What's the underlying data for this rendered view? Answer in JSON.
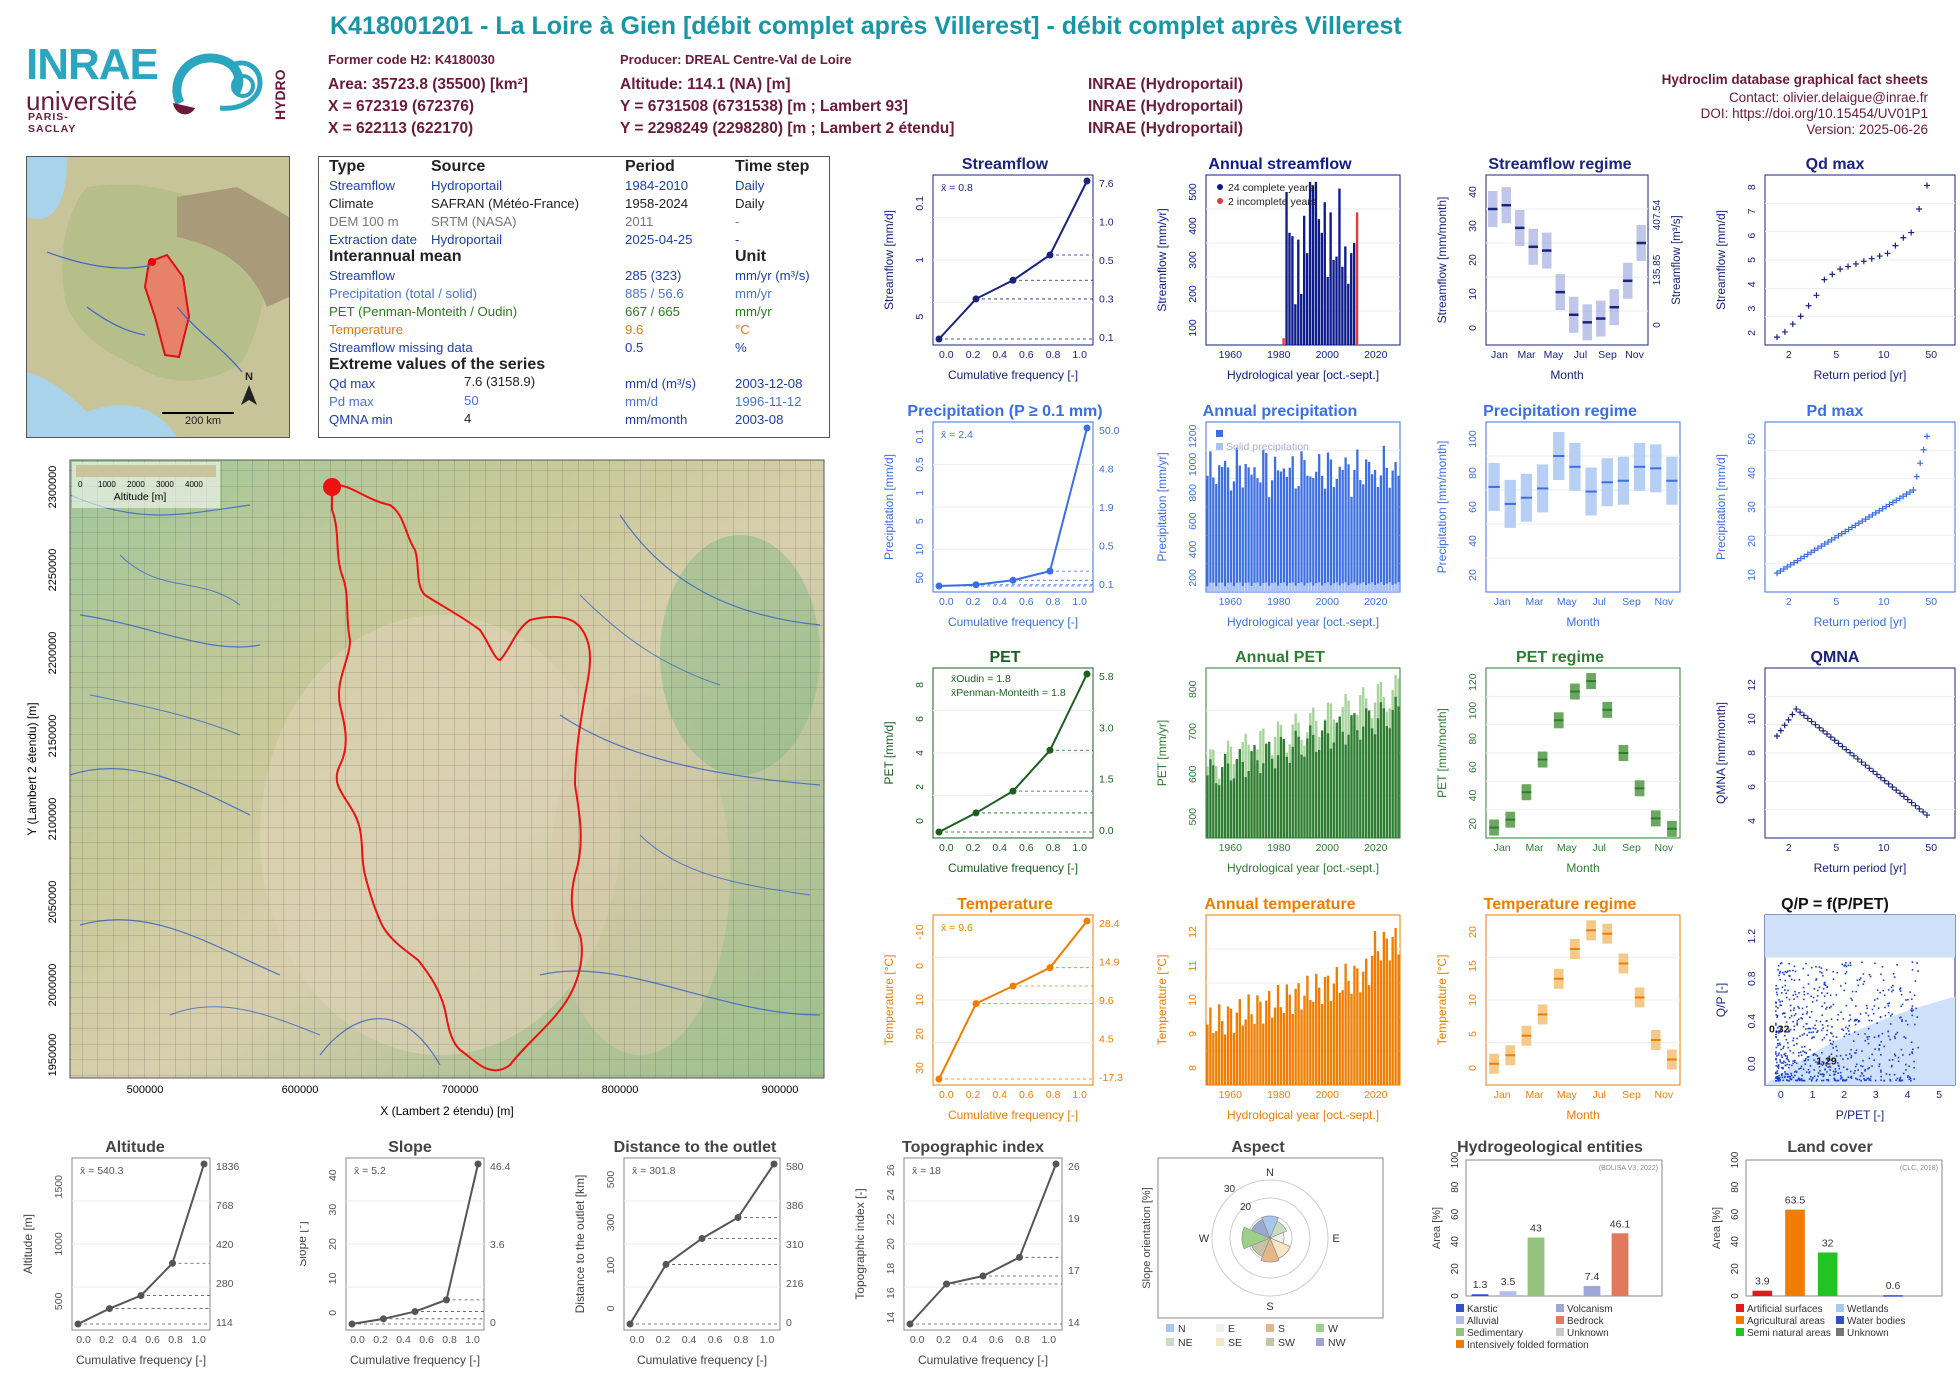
{
  "header": {
    "title": "K418001201 - La Loire à Gien [débit complet après Villerest] - débit complet après Villerest",
    "former_code": "Former code H2: K4180030",
    "producer": "Producer: DREAL Centre-Val de Loire",
    "area": "Area: 35723.8 (35500) [km²]",
    "x": "X = 672319 (672376)",
    "x2": "X = 622113 (622170)",
    "altitude": "Altitude: 114.1 (NA) [m]",
    "y": "Y = 6731508 (6731538) [m ; Lambert 93]",
    "y2": "Y = 2298249 (2298280) [m ; Lambert 2 étendu]",
    "src1": "INRAE (Hydroportail)",
    "src2": "INRAE (Hydroportail)",
    "src3": "INRAE (Hydroportail)",
    "db": "Hydroclim database graphical fact sheets",
    "contact": "Contact: olivier.delaigue@inrae.fr",
    "doi": "DOI: https://doi.org/10.15454/UV01P1",
    "version": "Version: 2025-06-26"
  },
  "logos": {
    "inrae": "INRAE",
    "universite": "université",
    "paris_saclay": "PARIS-SACLAY",
    "hydro": "HYDRO"
  },
  "info": {
    "h_type": "Type",
    "h_source": "Source",
    "h_period": "Period",
    "h_step": "Time step",
    "rows": [
      [
        "Streamflow",
        "Hydroportail",
        "1984-2010",
        "Daily"
      ],
      [
        "Climate",
        "SAFRAN (Météo-France)",
        "1958-2024",
        "Daily"
      ],
      [
        "DEM 100 m",
        "SRTM (NASA)",
        "2011",
        "-"
      ],
      [
        "Extraction date",
        "Hydroportail",
        "2025-04-25",
        "-"
      ]
    ],
    "h_mean": "Interannual mean",
    "h_unit": "Unit",
    "means": [
      [
        "Streamflow",
        "285 (323)",
        "mm/yr (m³/s)"
      ],
      [
        "Precipitation (total / solid)",
        "885 / 56.6",
        "mm/yr"
      ],
      [
        "PET (Penman-Monteith / Oudin)",
        "667 / 665",
        "mm/yr"
      ],
      [
        "Temperature",
        "9.6",
        "°C"
      ],
      [
        "Streamflow missing data",
        "0.5",
        "%"
      ]
    ],
    "h_extreme": "Extreme values of the series",
    "extremes": [
      [
        "Qd max",
        "7.6 (3158.9)",
        "mm/d (m³/s)",
        "2003-12-08"
      ],
      [
        "Pd max",
        "50",
        "mm/d",
        "1996-11-12"
      ],
      [
        "QMNA min",
        "4",
        "mm/month",
        "2003-08"
      ]
    ]
  },
  "inset_map": {
    "scale": "200 km",
    "north": "N"
  },
  "main_map": {
    "xlabel": "X (Lambert 2 étendu) [m]",
    "ylabel": "Y (Lambert 2 étendu) [m]",
    "xticks": [
      "500000",
      "600000",
      "700000",
      "800000",
      "900000"
    ],
    "yticks": [
      "2300000",
      "2250000",
      "2200000",
      "2150000",
      "2100000",
      "2050000",
      "2000000",
      "1950000"
    ],
    "legend_title": "Altitude [m]",
    "legend_ticks": [
      "0",
      "1000",
      "2000",
      "3000",
      "4000"
    ]
  },
  "chart_data": [
    {
      "id": "streamflow_fdc",
      "type": "line",
      "title": "Streamflow",
      "xlabel": "Cumulative frequency [-]",
      "ylabel": "Streamflow [mm/d]",
      "log_y": true,
      "mean_label": "x̄ = 0.8",
      "x": [
        0,
        0.25,
        0.5,
        0.75,
        1
      ],
      "y": [
        0.1,
        0.3,
        0.5,
        1.0,
        7.6
      ],
      "right_ticks": [
        "7.6",
        "1.0",
        "0.5",
        "0.3",
        "0.1"
      ],
      "y_ticks": [
        "5",
        "1",
        "0.1"
      ],
      "x_ticks": [
        "0.0",
        "0.2",
        "0.4",
        "0.6",
        "0.8",
        "1.0"
      ],
      "color": "#1a237e"
    },
    {
      "id": "annual_streamflow",
      "type": "bar",
      "title": "Annual streamflow",
      "xlabel": "Hydrological year [oct.-sept.]",
      "ylabel": "Streamflow [mm/yr]",
      "legend": [
        "24 complete years",
        "2 incomplete years"
      ],
      "years_start": 1984,
      "values": [
        20,
        450,
        330,
        320,
        120,
        310,
        150,
        380,
        270,
        480,
        470,
        480,
        370,
        330,
        420,
        200,
        390,
        250,
        260,
        460,
        230,
        290,
        180,
        270,
        300,
        390
      ],
      "ylim": [
        0,
        500
      ],
      "y_ticks": [
        "100",
        "200",
        "300",
        "400",
        "500"
      ],
      "x_ticks": [
        "1960",
        "1980",
        "2000",
        "2020"
      ],
      "color": "#0d1b8c",
      "incomplete_color": "#e53935"
    },
    {
      "id": "streamflow_regime",
      "type": "bar",
      "title": "Streamflow regime",
      "xlabel": "Month",
      "ylabel": "Streamflow [mm/month]",
      "months": [
        "Jan",
        "Mar",
        "May",
        "Jul",
        "Sep",
        "Nov"
      ],
      "values": [
        36,
        37,
        31,
        26,
        25,
        14,
        8,
        6,
        7,
        10,
        17,
        27
      ],
      "ylim": [
        0,
        45
      ],
      "y_ticks": [
        "0",
        "10",
        "20",
        "30",
        "40"
      ],
      "right_label": "Streamflow [m³/s]",
      "right_ticks": [
        "407.54",
        "135.85",
        "0"
      ],
      "color": "#1a237e"
    },
    {
      "id": "qd_max",
      "type": "scatter",
      "title": "Qd max",
      "xlabel": "Return period [yr]",
      "ylabel": "Streamflow [mm/d]",
      "x_ticks": [
        "2",
        "5",
        "10",
        "50"
      ],
      "y_ticks": [
        "2",
        "3",
        "4",
        "5",
        "6",
        "7",
        "8"
      ],
      "ylim": [
        1.5,
        8
      ],
      "y": [
        1.8,
        2.0,
        2.3,
        2.6,
        3.0,
        3.4,
        4.0,
        4.2,
        4.4,
        4.5,
        4.6,
        4.7,
        4.8,
        4.9,
        5.0,
        5.3,
        5.6,
        5.8,
        6.7,
        7.6
      ],
      "color": "#1a237e"
    },
    {
      "id": "precip_fdc",
      "type": "line",
      "title": "Precipitation (P ≥ 0.1 mm)",
      "xlabel": "Cumulative frequency [-]",
      "ylabel": "Precipitation [mm/d]",
      "mean_label": "x̄ = 2.4",
      "x": [
        0,
        0.25,
        0.5,
        0.75,
        1
      ],
      "y": [
        0.1,
        0.5,
        1.9,
        4.8,
        50.0
      ],
      "right_ticks": [
        "50.0",
        "4.8",
        "1.9",
        "0.5",
        "0.1"
      ],
      "y_ticks": [
        "50",
        "10",
        "5",
        "1",
        "0.5",
        "0.1"
      ],
      "x_ticks": [
        "0.0",
        "0.2",
        "0.4",
        "0.6",
        "0.8",
        "1.0"
      ],
      "color": "#3c6fe0"
    },
    {
      "id": "annual_precip",
      "type": "bar",
      "title": "Annual precipitation",
      "xlabel": "Hydrological year [oct.-sept.]",
      "ylabel": "Precipitation [mm/yr]",
      "legend": [
        "Total precipitation",
        "Solid precipitation"
      ],
      "years_start": 1958,
      "ylim": [
        0,
        1200
      ],
      "y_ticks": [
        "200",
        "400",
        "600",
        "800",
        "1000",
        "1200"
      ],
      "x_ticks": [
        "1960",
        "1980",
        "2000",
        "2020"
      ],
      "color": "#3c6fe0",
      "solid_color": "#a9c1f5"
    },
    {
      "id": "precip_regime",
      "type": "bar",
      "title": "Precipitation regime",
      "xlabel": "Month",
      "ylabel": "Precipitation [mm/month]",
      "months": [
        "Jan",
        "Mar",
        "May",
        "Jul",
        "Sep",
        "Nov"
      ],
      "values": [
        68,
        57,
        61,
        67,
        88,
        81,
        65,
        71,
        72,
        81,
        80,
        72
      ],
      "ylim": [
        0,
        110
      ],
      "y_ticks": [
        "20",
        "40",
        "60",
        "80",
        "100"
      ],
      "color": "#3c6fe0"
    },
    {
      "id": "pd_max",
      "type": "scatter",
      "title": "Pd max",
      "xlabel": "Return period [yr]",
      "ylabel": "Precipitation [mm/d]",
      "x_ticks": [
        "2",
        "5",
        "10",
        "50"
      ],
      "y_ticks": [
        "10",
        "20",
        "30",
        "40",
        "50"
      ],
      "ylim": [
        10,
        55
      ],
      "color": "#3c6fe0"
    },
    {
      "id": "pet_fdc",
      "type": "line",
      "title": "PET",
      "xlabel": "Cumulative frequency [-]",
      "ylabel": "PET [mm/d]",
      "legend": [
        "x̄Oudin = 1.8",
        "x̄Penman-Monteith = 1.8"
      ],
      "x": [
        0,
        0.25,
        0.5,
        0.75,
        1
      ],
      "y": [
        0.0,
        0.7,
        1.5,
        3.0,
        5.8
      ],
      "right_ticks": [
        "5.8",
        "3.0",
        "1.5",
        "0.0"
      ],
      "y_ticks": [
        "0",
        "2",
        "4",
        "6",
        "8"
      ],
      "x_ticks": [
        "0.0",
        "0.2",
        "0.4",
        "0.6",
        "0.8",
        "1.0"
      ],
      "color": "#1b5e20"
    },
    {
      "id": "annual_pet",
      "type": "bar",
      "title": "Annual PET",
      "xlabel": "Hydrological year [oct.-sept.]",
      "ylabel": "PET [mm/yr]",
      "years_start": 1958,
      "ylim": [
        500,
        880
      ],
      "y_ticks": [
        "500",
        "600",
        "700",
        "800"
      ],
      "x_ticks": [
        "1960",
        "1980",
        "2000",
        "2020"
      ],
      "color": "#2e7d32"
    },
    {
      "id": "pet_regime",
      "type": "bar",
      "title": "PET regime",
      "xlabel": "Month",
      "ylabel": "PET [mm/month]",
      "months": [
        "Jan",
        "Mar",
        "May",
        "Jul",
        "Sep",
        "Nov"
      ],
      "values": [
        8,
        14,
        35,
        60,
        90,
        112,
        120,
        98,
        65,
        38,
        15,
        7
      ],
      "ylim": [
        0,
        130
      ],
      "y_ticks": [
        "20",
        "40",
        "60",
        "80",
        "100",
        "120"
      ],
      "color": "#2e7d32"
    },
    {
      "id": "qmna",
      "type": "scatter",
      "title": "QMNA",
      "xlabel": "Return period [yr]",
      "ylabel": "QMNA [mm/month]",
      "x_ticks": [
        "2",
        "5",
        "10",
        "50"
      ],
      "y_ticks": [
        "4",
        "6",
        "8",
        "10",
        "12"
      ],
      "ylim": [
        3,
        15
      ],
      "color": "#1a237e"
    },
    {
      "id": "temp_fdc",
      "type": "line",
      "title": "Temperature",
      "xlabel": "Cumulative frequency [-]",
      "ylabel": "Temperature [°C]",
      "mean_label": "x̄ = 9.6",
      "x": [
        0,
        0.25,
        0.5,
        0.75,
        1
      ],
      "y": [
        -17.3,
        4.5,
        9.6,
        14.9,
        28.4
      ],
      "right_ticks": [
        "28.4",
        "14.9",
        "9.6",
        "4.5",
        "-17.3"
      ],
      "y_ticks": [
        "30",
        "20",
        "10",
        "0",
        "-10"
      ],
      "x_ticks": [
        "0.0",
        "0.2",
        "0.4",
        "0.6",
        "0.8",
        "1.0"
      ],
      "color": "#ef7d00"
    },
    {
      "id": "annual_temp",
      "type": "bar",
      "title": "Annual temperature",
      "xlabel": "Hydrological year [oct.-sept.]",
      "ylabel": "Temperature [°C]",
      "years_start": 1958,
      "ylim": [
        7.5,
        12
      ],
      "y_ticks": [
        "8",
        "9",
        "10",
        "11",
        "12"
      ],
      "x_ticks": [
        "1960",
        "1980",
        "2000",
        "2020"
      ],
      "color": "#ef7d00"
    },
    {
      "id": "temp_regime",
      "type": "bar",
      "title": "Temperature regime",
      "xlabel": "Month",
      "ylabel": "Temperature [°C]",
      "months": [
        "Jan",
        "Mar",
        "May",
        "Jul",
        "Sep",
        "Nov"
      ],
      "values": [
        2.5,
        3.5,
        5.8,
        8.3,
        12.5,
        16.0,
        18.2,
        17.8,
        14.3,
        10.3,
        5.3,
        3.0
      ],
      "ylim": [
        0,
        20
      ],
      "y_ticks": [
        "0",
        "5",
        "10",
        "15",
        "20"
      ],
      "color": "#ef7d00"
    },
    {
      "id": "qp_ppet",
      "type": "scatter",
      "title": "Q/P = f(P/PET)",
      "xlabel": "P/PET [-]",
      "ylabel": "Q/P [-]",
      "x_ticks": [
        "0",
        "1",
        "2",
        "3",
        "4",
        "5"
      ],
      "y_ticks": [
        "0.0",
        "0.4",
        "0.8",
        "1.2"
      ],
      "point_labels": [
        "0.32",
        "1.29"
      ],
      "color": "#1a3fd0"
    },
    {
      "id": "altitude_cdf",
      "type": "line",
      "title": "Altitude",
      "xlabel": "Cumulative frequency [-]",
      "ylabel": "Altitude [m]",
      "mean_label": "x̄ = 540.3",
      "x": [
        0,
        0.25,
        0.5,
        0.75,
        1
      ],
      "y": [
        114,
        280,
        420,
        768,
        1836
      ],
      "right_ticks": [
        "1836",
        "768",
        "420",
        "280",
        "114"
      ],
      "y_ticks": [
        "500",
        "1000",
        "1500"
      ],
      "x_ticks": [
        "0.0",
        "0.2",
        "0.4",
        "0.6",
        "0.8",
        "1.0"
      ],
      "color": "#555555"
    },
    {
      "id": "slope_cdf",
      "type": "line",
      "title": "Slope",
      "xlabel": "Cumulative frequency [-]",
      "ylabel": "Slope [°]",
      "mean_label": "x̄ = 5.2",
      "x": [
        0,
        0.25,
        0.5,
        0.75,
        1
      ],
      "y": [
        0,
        1.5,
        3.6,
        7,
        46.4
      ],
      "right_ticks": [
        "46.4",
        "3.6",
        "0"
      ],
      "y_ticks": [
        "0",
        "10",
        "20",
        "30",
        "40"
      ],
      "x_ticks": [
        "0.0",
        "0.2",
        "0.4",
        "0.6",
        "0.8",
        "1.0"
      ],
      "color": "#555555"
    },
    {
      "id": "distance_cdf",
      "type": "line",
      "title": "Distance to the outlet",
      "xlabel": "Cumulative frequency [-]",
      "ylabel": "Distance to the outlet [km]",
      "mean_label": "x̄ = 301.8",
      "x": [
        0,
        0.25,
        0.5,
        0.75,
        1
      ],
      "y": [
        0,
        216,
        310,
        386,
        580
      ],
      "right_ticks": [
        "580",
        "386",
        "310",
        "216",
        "0"
      ],
      "y_ticks": [
        "0",
        "100",
        "300",
        "500"
      ],
      "x_ticks": [
        "0.0",
        "0.2",
        "0.4",
        "0.6",
        "0.8",
        "1.0"
      ],
      "color": "#555555"
    },
    {
      "id": "topo_cdf",
      "type": "line",
      "title": "Topographic index",
      "xlabel": "Cumulative frequency [-]",
      "ylabel": "Topographic index [-]",
      "mean_label": "x̄ = 18",
      "x": [
        0,
        0.25,
        0.5,
        0.75,
        1
      ],
      "y": [
        14,
        17,
        17.6,
        19,
        26
      ],
      "right_ticks": [
        "26",
        "19",
        "17",
        "14"
      ],
      "y_ticks": [
        "14",
        "16",
        "18",
        "20",
        "22",
        "24",
        "26"
      ],
      "x_ticks": [
        "0.0",
        "0.2",
        "0.4",
        "0.6",
        "0.8",
        "1.0"
      ],
      "color": "#555555"
    },
    {
      "id": "aspect",
      "type": "pie",
      "title": "Aspect",
      "ylabel": "Slope orientation [%]",
      "directions": [
        "N",
        "NE",
        "E",
        "SE",
        "S",
        "SW",
        "W",
        "NW"
      ],
      "rings": [
        "20",
        "30"
      ],
      "legend": [
        "N",
        "NE",
        "E",
        "SE",
        "S",
        "SW",
        "W",
        "NW"
      ],
      "colors": [
        "#a6c8ef",
        "#c7dcc0",
        "#eef0e8",
        "#f5e6c6",
        "#e6b58a",
        "#c6c2a6",
        "#9ccf88",
        "#9aa7cf"
      ]
    },
    {
      "id": "hydrogeo",
      "type": "bar",
      "title": "Hydrogeological entities",
      "ylabel": "Area [%]",
      "source": "(BDLISA V3, 2022)",
      "categories": [
        "Karstic",
        "Alluvial",
        "Sedimentary",
        "Intensively folded formation",
        "Volcanism",
        "Bedrock",
        "Unknown"
      ],
      "values": [
        1.3,
        3.5,
        43,
        0,
        7.4,
        46.1,
        0
      ],
      "ylim": [
        0,
        100
      ],
      "y_ticks": [
        "0",
        "20",
        "40",
        "60",
        "80",
        "100"
      ],
      "colors": [
        "#3050c8",
        "#b3bde9",
        "#95c27f",
        "#ef7d00",
        "#9ea8d6",
        "#e07a5f",
        "#c8c8c8"
      ],
      "legend": [
        "Karstic",
        "Alluvial",
        "Sedimentary",
        "Intensively folded formation",
        "Volcanism",
        "Bedrock",
        "Unknown"
      ]
    },
    {
      "id": "land_cover",
      "type": "bar",
      "title": "Land cover",
      "ylabel": "Area [%]",
      "source": "(CLC, 2018)",
      "categories": [
        "Artificial surfaces",
        "Agricultural areas",
        "Semi natural areas",
        "Wetlands",
        "Water bodies",
        "Unknown"
      ],
      "values": [
        3.9,
        63.5,
        32,
        0,
        0.6,
        0
      ],
      "ylim": [
        0,
        100
      ],
      "y_ticks": [
        "0",
        "20",
        "40",
        "60",
        "80",
        "100"
      ],
      "colors": [
        "#e31a1c",
        "#ef7d00",
        "#22c322",
        "#a6c8ef",
        "#3050c8",
        "#777777"
      ],
      "legend": [
        "Artificial surfaces",
        "Agricultural areas",
        "Semi natural areas",
        "Wetlands",
        "Water bodies",
        "Unknown"
      ]
    }
  ]
}
